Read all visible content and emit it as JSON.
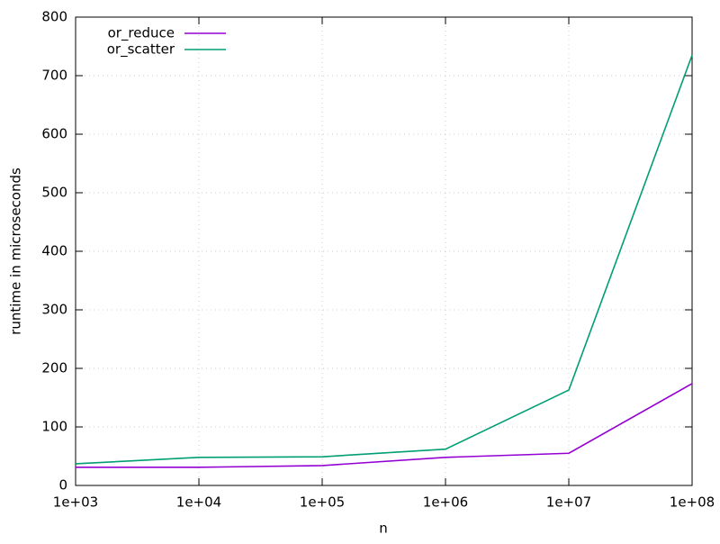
{
  "chart_data": {
    "type": "line",
    "x_label": "n",
    "y_label": "runtime in microseconds",
    "x": [
      1000,
      10000,
      100000,
      1000000,
      10000000,
      100000000
    ],
    "series": [
      {
        "name": "or_reduce",
        "color": "#9400d3",
        "values": [
          31,
          31,
          34,
          48,
          55,
          174
        ]
      },
      {
        "name": "or_scatter",
        "color": "#009e73",
        "values": [
          37,
          48,
          49,
          62,
          163,
          735
        ]
      }
    ],
    "x_log": true,
    "xlim": [
      1000,
      100000000
    ],
    "xticks": [
      {
        "value": 1000,
        "label": "1e+03"
      },
      {
        "value": 10000,
        "label": "1e+04"
      },
      {
        "value": 100000,
        "label": "1e+05"
      },
      {
        "value": 1000000,
        "label": "1e+06"
      },
      {
        "value": 10000000,
        "label": "1e+07"
      },
      {
        "value": 100000000,
        "label": "1e+08"
      }
    ],
    "ylim": [
      0,
      800
    ],
    "yticks": [
      0,
      100,
      200,
      300,
      400,
      500,
      600,
      700,
      800
    ],
    "grid": true,
    "legend": "top-left"
  }
}
